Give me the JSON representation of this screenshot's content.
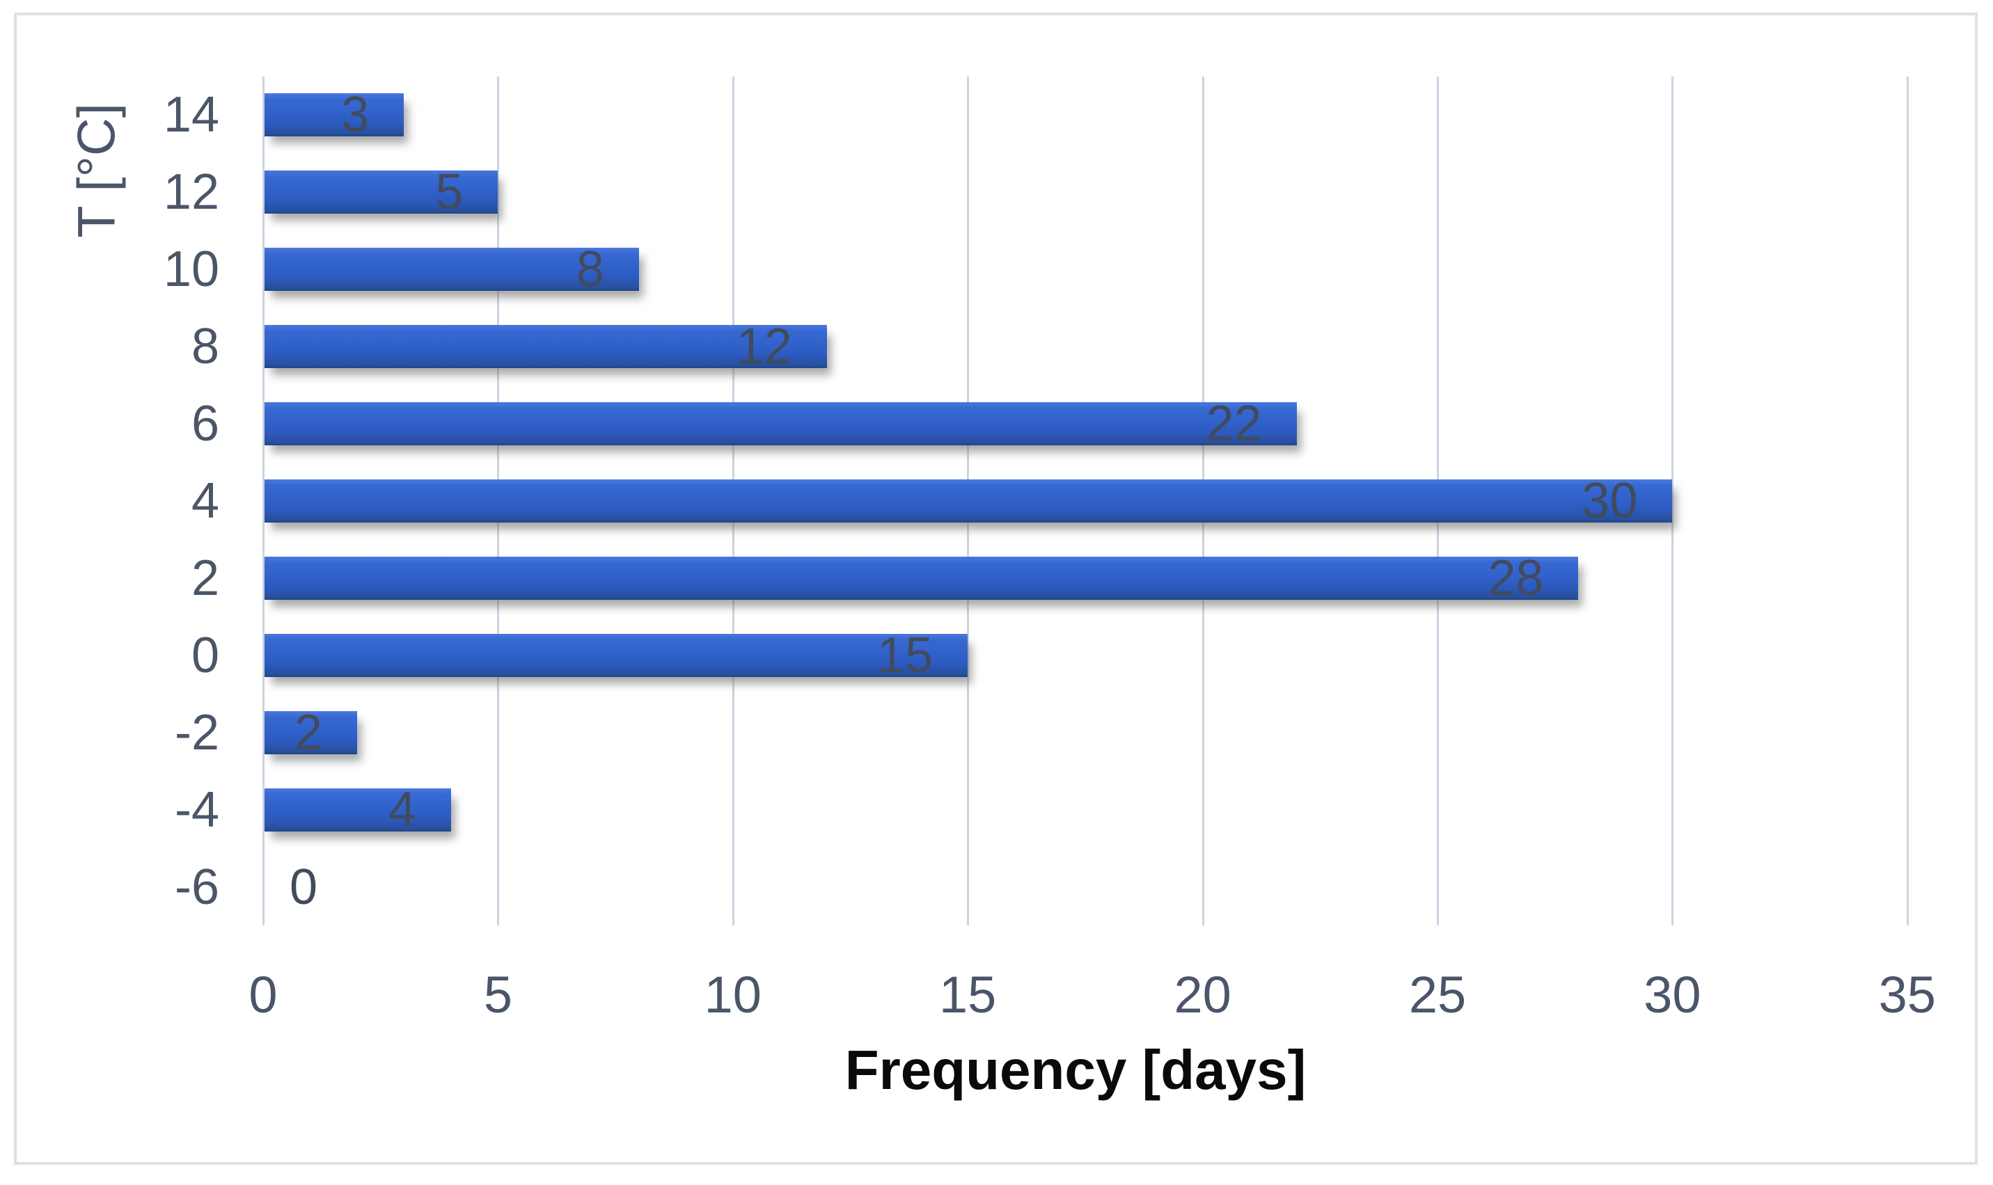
{
  "chart_data": {
    "type": "bar",
    "orientation": "horizontal",
    "title": "",
    "xlabel": "Frequency [days]",
    "ylabel": "T [°C]",
    "categories": [
      "14",
      "12",
      "10",
      "8",
      "6",
      "4",
      "2",
      "0",
      "-2",
      "-4",
      "-6"
    ],
    "values": [
      3,
      5,
      8,
      12,
      22,
      30,
      28,
      15,
      2,
      4,
      0
    ],
    "xlim": [
      0,
      35
    ],
    "x_ticks": [
      "0",
      "5",
      "10",
      "15",
      "20",
      "25",
      "30",
      "35"
    ],
    "x_tick_step": 5,
    "grid": "vertical-major",
    "legend": "none",
    "data_labels": "inside-end",
    "colors": {
      "bar": "#2F5FC4",
      "bar_gradient_top": "#4A78DC",
      "bar_gradient_bottom": "#1F4488",
      "gridline": "#CCD3E0",
      "tick_text": "#4A5668",
      "data_label_text": "#414B5D",
      "x_title_text": "#0A0A0A",
      "chart_border": "#DCE1E9",
      "background": "#FFFFFF"
    }
  }
}
